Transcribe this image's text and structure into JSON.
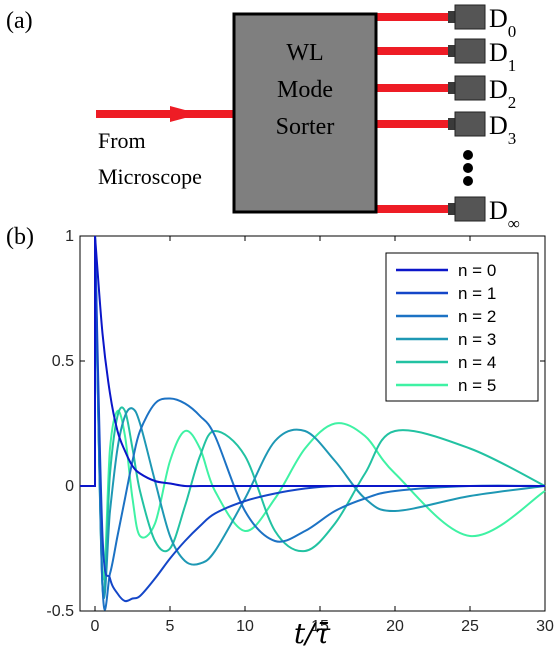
{
  "panel_a": {
    "label": "(a)",
    "sorter_line1": "WL",
    "sorter_line2": "Mode",
    "sorter_line3": "Sorter",
    "input_line1": "From",
    "input_line2": "Microscope",
    "detectors": [
      {
        "base": "D",
        "sub": "0"
      },
      {
        "base": "D",
        "sub": "1"
      },
      {
        "base": "D",
        "sub": "2"
      },
      {
        "base": "D",
        "sub": "3"
      },
      {
        "base": "D",
        "sub": "∞"
      }
    ],
    "colors": {
      "beam": "#ee1c25",
      "sorter": "#7f7f7f",
      "detector": "#555555"
    }
  },
  "panel_b": {
    "label": "(b)",
    "xlabel": "t/τ̄"
  },
  "chart_data": {
    "type": "line",
    "x": [
      0,
      0.5,
      1,
      1.5,
      2,
      2.5,
      3,
      4,
      5,
      6,
      7,
      8,
      10,
      12,
      14,
      16,
      18,
      20,
      25,
      30
    ],
    "series": [
      {
        "name": "n = 0",
        "color": "#0b16c9",
        "values": [
          1.0,
          0.61,
          0.37,
          0.22,
          0.14,
          0.08,
          0.05,
          0.02,
          0.01,
          0.0,
          0.0,
          0.0,
          0.0,
          0.0,
          0.0,
          0.0,
          0.0,
          0.0,
          0.0,
          0.0
        ]
      },
      {
        "name": "n = 1",
        "color": "#1446c8",
        "values": [
          1.0,
          -0.2,
          -0.37,
          -0.43,
          -0.46,
          -0.45,
          -0.44,
          -0.37,
          -0.29,
          -0.22,
          -0.16,
          -0.11,
          -0.06,
          -0.03,
          -0.01,
          0.0,
          0.0,
          0.0,
          0.0,
          0.0
        ]
      },
      {
        "name": "n = 2",
        "color": "#1c72c4",
        "values": [
          1.0,
          -0.4,
          -0.35,
          -0.2,
          -0.05,
          0.1,
          0.22,
          0.33,
          0.35,
          0.33,
          0.28,
          0.2,
          -0.1,
          -0.22,
          -0.18,
          -0.1,
          -0.05,
          -0.02,
          0.0,
          0.0
        ]
      },
      {
        "name": "n = 3",
        "color": "#1e98b4",
        "values": [
          1.0,
          -0.4,
          -0.1,
          0.15,
          0.28,
          0.31,
          0.25,
          0.02,
          -0.2,
          -0.3,
          -0.31,
          -0.26,
          -0.05,
          0.18,
          0.22,
          0.1,
          -0.05,
          -0.1,
          -0.04,
          0.0
        ]
      },
      {
        "name": "n = 4",
        "color": "#22c2a2",
        "values": [
          1.0,
          -0.4,
          0.05,
          0.28,
          0.3,
          0.15,
          -0.02,
          -0.22,
          -0.25,
          -0.08,
          0.12,
          0.22,
          0.12,
          -0.18,
          -0.26,
          -0.15,
          0.05,
          0.22,
          0.15,
          0.0
        ]
      },
      {
        "name": "n = 5",
        "color": "#3ff2a4",
        "values": [
          1.0,
          -0.35,
          0.15,
          0.3,
          0.2,
          -0.05,
          -0.2,
          -0.15,
          0.1,
          0.22,
          0.15,
          -0.02,
          -0.18,
          -0.05,
          0.15,
          0.25,
          0.2,
          0.05,
          -0.2,
          -0.02
        ]
      }
    ],
    "xlim": [
      -1,
      30
    ],
    "ylim": [
      -0.5,
      1
    ],
    "xticks": [
      "0",
      "5",
      "10",
      "15",
      "20",
      "25",
      "30"
    ],
    "yticks": [
      "-0.5",
      "0",
      "0.5",
      "1"
    ],
    "legend": "top-right",
    "grid": false
  }
}
